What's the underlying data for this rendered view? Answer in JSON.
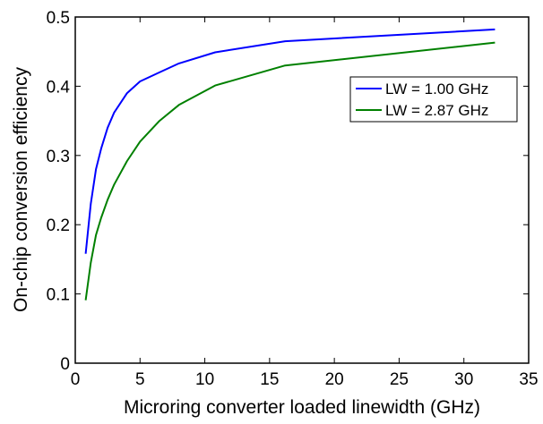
{
  "chart_data": {
    "type": "line",
    "title": "",
    "xlabel": "Microring converter loaded linewidth (GHz)",
    "ylabel": "On-chip conversion efficiency",
    "xlim": [
      0,
      35
    ],
    "ylim": [
      0,
      0.5
    ],
    "xticks": [
      0,
      5,
      10,
      15,
      20,
      25,
      30,
      35
    ],
    "yticks": [
      0,
      0.1,
      0.2,
      0.3,
      0.4,
      0.5
    ],
    "xtick_labels": [
      "0",
      "5",
      "10",
      "15",
      "20",
      "25",
      "30",
      "35"
    ],
    "ytick_labels": [
      "0",
      "0.1",
      "0.2",
      "0.3",
      "0.4",
      "0.5"
    ],
    "grid": false,
    "legend_position": "upper-right",
    "series": [
      {
        "name": "LW = 1.00 GHz",
        "color": "#0000ff",
        "x": [
          0.8,
          1.2,
          1.6,
          2.0,
          2.5,
          3.0,
          4.0,
          5.0,
          6.5,
          8.0,
          10.8,
          16.2,
          32.4
        ],
        "y": [
          0.158,
          0.23,
          0.28,
          0.31,
          0.34,
          0.362,
          0.39,
          0.407,
          0.42,
          0.433,
          0.449,
          0.465,
          0.482
        ]
      },
      {
        "name": "LW = 2.87 GHz",
        "color": "#008000",
        "x": [
          0.8,
          1.2,
          1.6,
          2.0,
          2.5,
          3.0,
          4.0,
          5.0,
          6.5,
          8.0,
          10.8,
          16.2,
          32.4
        ],
        "y": [
          0.091,
          0.145,
          0.185,
          0.21,
          0.236,
          0.258,
          0.292,
          0.32,
          0.35,
          0.373,
          0.401,
          0.43,
          0.463
        ]
      }
    ]
  }
}
